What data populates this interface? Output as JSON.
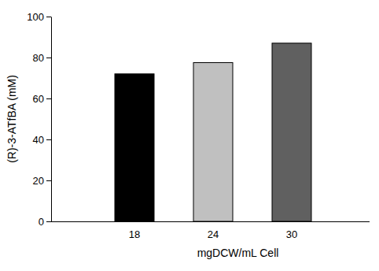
{
  "chart_data": {
    "type": "bar",
    "x_label": "mgDCW/mL Cell",
    "y_label": "(R)-3-ATfBA (mM)",
    "categories": [
      "18",
      "24",
      "30"
    ],
    "values": [
      72,
      77.5,
      87
    ],
    "colors": [
      "#000000",
      "#c0c0c0",
      "#606060"
    ],
    "ylim": [
      0,
      100
    ],
    "yticks": [
      0,
      20,
      40,
      60,
      80,
      100
    ],
    "grid": false
  }
}
